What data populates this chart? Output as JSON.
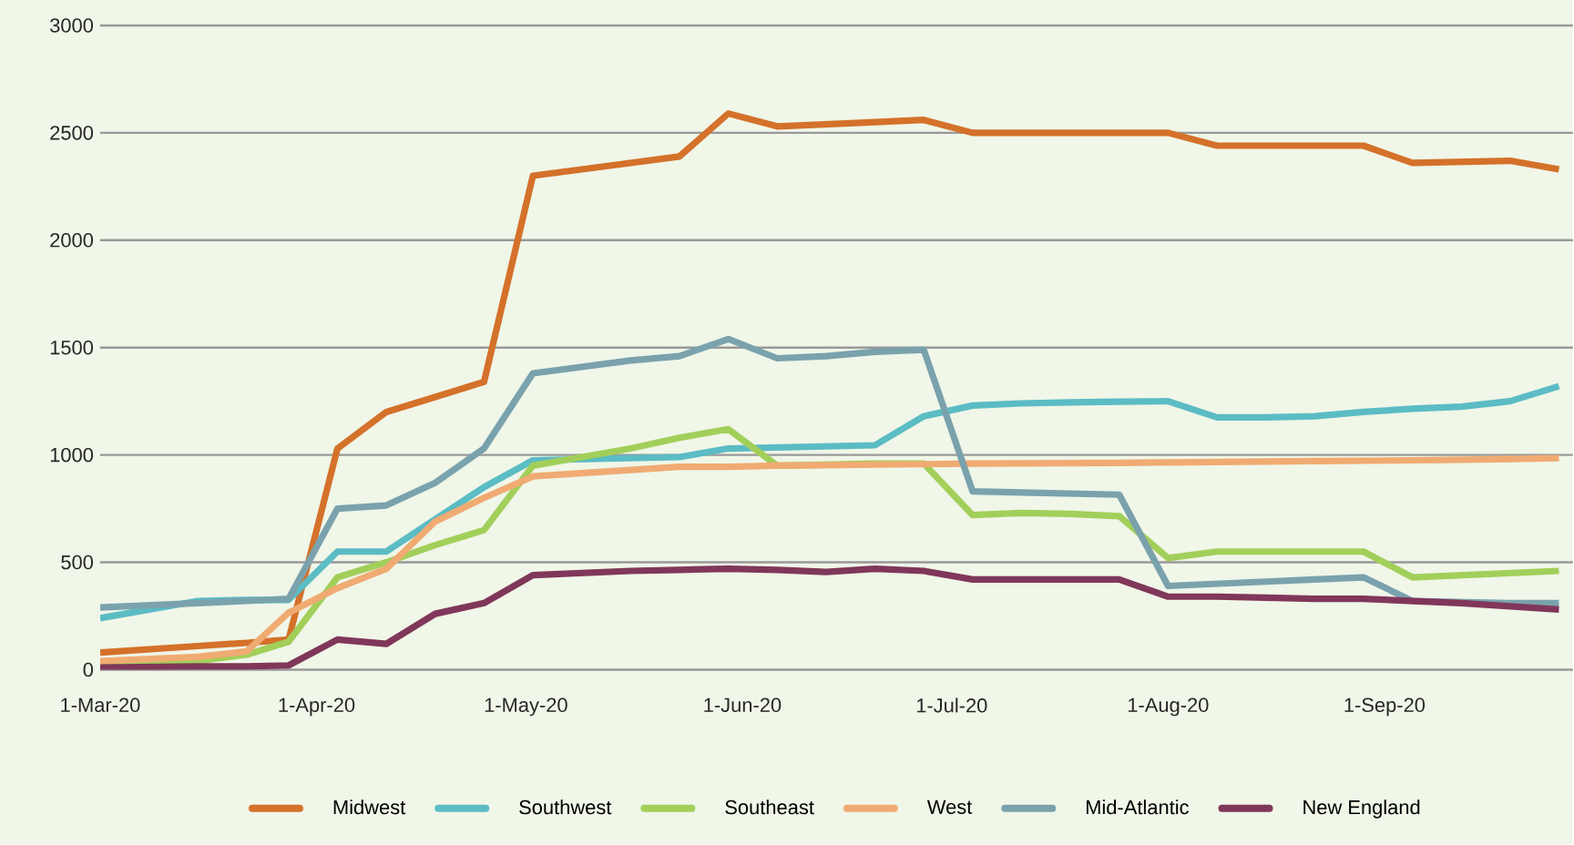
{
  "chart_data": {
    "type": "line",
    "x": [
      "2020-03-01",
      "2020-03-15",
      "2020-03-22",
      "2020-03-28",
      "2020-04-04",
      "2020-04-11",
      "2020-04-18",
      "2020-04-25",
      "2020-05-02",
      "2020-05-09",
      "2020-05-16",
      "2020-05-23",
      "2020-05-30",
      "2020-06-06",
      "2020-06-13",
      "2020-06-20",
      "2020-06-27",
      "2020-07-04",
      "2020-07-11",
      "2020-07-18",
      "2020-07-25",
      "2020-08-01",
      "2020-08-08",
      "2020-08-15",
      "2020-08-22",
      "2020-08-29",
      "2020-09-05",
      "2020-09-12",
      "2020-09-19",
      "2020-09-26"
    ],
    "series": [
      {
        "name": "Midwest",
        "color": "#d4712a",
        "values": [
          80,
          110,
          125,
          140,
          1030,
          1200,
          1270,
          1340,
          2300,
          2330,
          2360,
          2390,
          2590,
          2530,
          2540,
          2550,
          2560,
          2500,
          2500,
          2500,
          2500,
          2500,
          2440,
          2440,
          2440,
          2440,
          2360,
          2365,
          2370,
          2330
        ]
      },
      {
        "name": "Southwest",
        "color": "#5bbcc4",
        "values": [
          240,
          320,
          325,
          325,
          550,
          550,
          700,
          850,
          975,
          980,
          985,
          990,
          1030,
          1035,
          1040,
          1045,
          1180,
          1230,
          1240,
          1245,
          1248,
          1250,
          1175,
          1175,
          1180,
          1200,
          1215,
          1225,
          1250,
          1320
        ]
      },
      {
        "name": "Southeast",
        "color": "#a2cf5a",
        "values": [
          20,
          40,
          70,
          130,
          430,
          500,
          580,
          650,
          950,
          990,
          1030,
          1080,
          1120,
          950,
          955,
          960,
          960,
          720,
          730,
          725,
          715,
          520,
          550,
          550,
          550,
          550,
          430,
          440,
          450,
          460
        ]
      },
      {
        "name": "West",
        "color": "#f0ab72",
        "values": [
          40,
          60,
          85,
          265,
          380,
          470,
          690,
          800,
          900,
          915,
          930,
          945,
          945,
          950,
          952,
          955,
          957,
          960,
          961,
          962,
          963,
          965,
          967,
          969,
          971,
          973,
          975,
          978,
          981,
          985
        ]
      },
      {
        "name": "Mid-Atlantic",
        "color": "#7aa2ad",
        "values": [
          290,
          310,
          320,
          330,
          750,
          765,
          870,
          1030,
          1380,
          1410,
          1440,
          1460,
          1540,
          1450,
          1460,
          1480,
          1490,
          830,
          825,
          820,
          815,
          390,
          400,
          410,
          420,
          430,
          320,
          315,
          310,
          310
        ]
      },
      {
        "name": "New England",
        "color": "#80375a",
        "values": [
          10,
          15,
          15,
          20,
          140,
          120,
          260,
          310,
          440,
          450,
          460,
          465,
          470,
          465,
          455,
          470,
          460,
          420,
          420,
          420,
          420,
          340,
          340,
          335,
          330,
          330,
          320,
          310,
          295,
          280
        ]
      }
    ],
    "xlim": [
      "2020-03-01",
      "2020-09-28"
    ],
    "xticks": [
      {
        "value": "2020-03-01",
        "label": "1-Mar-20"
      },
      {
        "value": "2020-04-01",
        "label": "1-Apr-20"
      },
      {
        "value": "2020-05-01",
        "label": "1-May-20"
      },
      {
        "value": "2020-06-01",
        "label": "1-Jun-20"
      },
      {
        "value": "2020-07-01",
        "label": "1-Jul-20"
      },
      {
        "value": "2020-08-01",
        "label": "1-Aug-20"
      },
      {
        "value": "2020-09-01",
        "label": "1-Sep-20"
      }
    ],
    "ylim": [
      0,
      3000
    ],
    "yticks": [
      0,
      500,
      1000,
      1500,
      2000,
      2500,
      3000
    ],
    "grid": "y",
    "legend": "bottom",
    "marker": "none",
    "line_style": "solid"
  }
}
